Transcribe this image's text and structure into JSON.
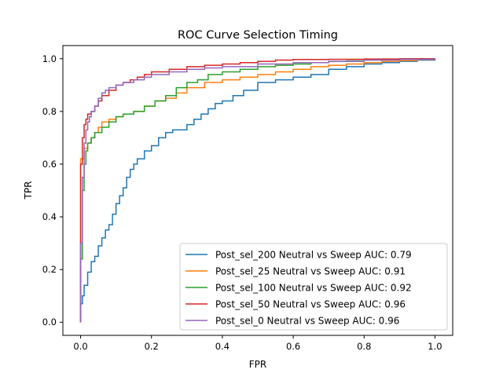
{
  "chart_data": {
    "type": "line",
    "title": "ROC Curve Selection Timing",
    "xlabel": "FPR",
    "ylabel": "TPR",
    "xlim": [
      -0.05,
      1.05
    ],
    "ylim": [
      -0.05,
      1.05
    ],
    "xticks": [
      0.0,
      0.2,
      0.4,
      0.6,
      0.8,
      1.0
    ],
    "yticks": [
      0.0,
      0.2,
      0.4,
      0.6,
      0.8,
      1.0
    ],
    "xtick_labels": [
      "0.0",
      "0.2",
      "0.4",
      "0.6",
      "0.8",
      "1.0"
    ],
    "ytick_labels": [
      "0.0",
      "0.2",
      "0.4",
      "0.6",
      "0.8",
      "1.0"
    ],
    "grid": false,
    "legend_position": "lower-right",
    "series": [
      {
        "name": "Post_sel_200 Neutral vs Sweep AUC: 0.79",
        "color": "#1f77b4",
        "x": [
          0.0,
          0.0,
          0.005,
          0.01,
          0.02,
          0.03,
          0.04,
          0.05,
          0.06,
          0.07,
          0.08,
          0.09,
          0.1,
          0.11,
          0.12,
          0.13,
          0.14,
          0.15,
          0.16,
          0.18,
          0.2,
          0.22,
          0.24,
          0.26,
          0.28,
          0.3,
          0.32,
          0.34,
          0.36,
          0.38,
          0.4,
          0.43,
          0.46,
          0.5,
          0.55,
          0.6,
          0.65,
          0.7,
          0.75,
          0.8,
          0.85,
          0.9,
          0.95,
          1.0
        ],
        "y": [
          0.0,
          0.07,
          0.1,
          0.14,
          0.19,
          0.23,
          0.25,
          0.29,
          0.32,
          0.35,
          0.37,
          0.41,
          0.45,
          0.48,
          0.51,
          0.55,
          0.58,
          0.6,
          0.62,
          0.65,
          0.67,
          0.7,
          0.72,
          0.73,
          0.73,
          0.75,
          0.77,
          0.79,
          0.81,
          0.83,
          0.84,
          0.86,
          0.88,
          0.91,
          0.92,
          0.93,
          0.94,
          0.96,
          0.97,
          0.98,
          0.985,
          0.99,
          0.995,
          1.0
        ]
      },
      {
        "name": "Post_sel_25 Neutral vs Sweep AUC: 0.91",
        "color": "#ff7f0e",
        "x": [
          0.0,
          0.0,
          0.01,
          0.02,
          0.03,
          0.04,
          0.05,
          0.06,
          0.08,
          0.1,
          0.12,
          0.15,
          0.18,
          0.21,
          0.24,
          0.27,
          0.3,
          0.35,
          0.4,
          0.45,
          0.5,
          0.55,
          0.6,
          0.65,
          0.7,
          0.75,
          0.8,
          0.85,
          0.9,
          0.95,
          1.0
        ],
        "y": [
          0.0,
          0.62,
          0.66,
          0.68,
          0.7,
          0.72,
          0.74,
          0.76,
          0.77,
          0.78,
          0.79,
          0.8,
          0.82,
          0.84,
          0.85,
          0.87,
          0.89,
          0.91,
          0.92,
          0.93,
          0.94,
          0.95,
          0.96,
          0.97,
          0.975,
          0.98,
          0.985,
          0.99,
          0.993,
          0.997,
          1.0
        ]
      },
      {
        "name": "Post_sel_100 Neutral vs Sweep AUC: 0.92",
        "color": "#2ca02c",
        "x": [
          0.0,
          0.0,
          0.005,
          0.01,
          0.015,
          0.02,
          0.03,
          0.04,
          0.06,
          0.08,
          0.1,
          0.12,
          0.15,
          0.18,
          0.21,
          0.24,
          0.27,
          0.3,
          0.33,
          0.36,
          0.4,
          0.45,
          0.5,
          0.55,
          0.6,
          0.65,
          0.7,
          0.75,
          0.8,
          0.85,
          0.9,
          0.95,
          1.0
        ],
        "y": [
          0.0,
          0.24,
          0.5,
          0.6,
          0.65,
          0.68,
          0.7,
          0.72,
          0.74,
          0.76,
          0.78,
          0.79,
          0.8,
          0.82,
          0.84,
          0.86,
          0.89,
          0.91,
          0.92,
          0.94,
          0.95,
          0.96,
          0.97,
          0.975,
          0.98,
          0.985,
          0.99,
          0.992,
          0.995,
          0.997,
          0.998,
          0.999,
          1.0
        ]
      },
      {
        "name": "Post_sel_50 Neutral vs Sweep AUC: 0.96",
        "color": "#d62728",
        "x": [
          0.0,
          0.0,
          0.005,
          0.01,
          0.015,
          0.02,
          0.03,
          0.04,
          0.05,
          0.06,
          0.08,
          0.1,
          0.12,
          0.14,
          0.16,
          0.18,
          0.2,
          0.25,
          0.3,
          0.35,
          0.4,
          0.45,
          0.5,
          0.55,
          0.6,
          0.7,
          0.8,
          0.9,
          1.0
        ],
        "y": [
          0.0,
          0.6,
          0.7,
          0.75,
          0.77,
          0.79,
          0.8,
          0.82,
          0.84,
          0.86,
          0.88,
          0.9,
          0.91,
          0.92,
          0.93,
          0.94,
          0.95,
          0.96,
          0.97,
          0.975,
          0.98,
          0.985,
          0.99,
          0.995,
          0.997,
          0.998,
          0.999,
          1.0,
          1.0
        ]
      },
      {
        "name": "Post_sel_0 Neutral vs Sweep AUC: 0.96",
        "color": "#9467bd",
        "x": [
          0.0,
          0.0,
          0.005,
          0.01,
          0.015,
          0.02,
          0.025,
          0.03,
          0.04,
          0.05,
          0.06,
          0.07,
          0.08,
          0.1,
          0.12,
          0.15,
          0.18,
          0.2,
          0.25,
          0.3,
          0.35,
          0.4,
          0.5,
          0.6,
          0.7,
          0.8,
          0.9,
          1.0
        ],
        "y": [
          0.0,
          0.3,
          0.55,
          0.68,
          0.73,
          0.76,
          0.78,
          0.8,
          0.82,
          0.85,
          0.87,
          0.88,
          0.89,
          0.9,
          0.91,
          0.92,
          0.93,
          0.94,
          0.95,
          0.96,
          0.965,
          0.97,
          0.98,
          0.985,
          0.99,
          0.995,
          0.998,
          1.0
        ]
      }
    ]
  }
}
